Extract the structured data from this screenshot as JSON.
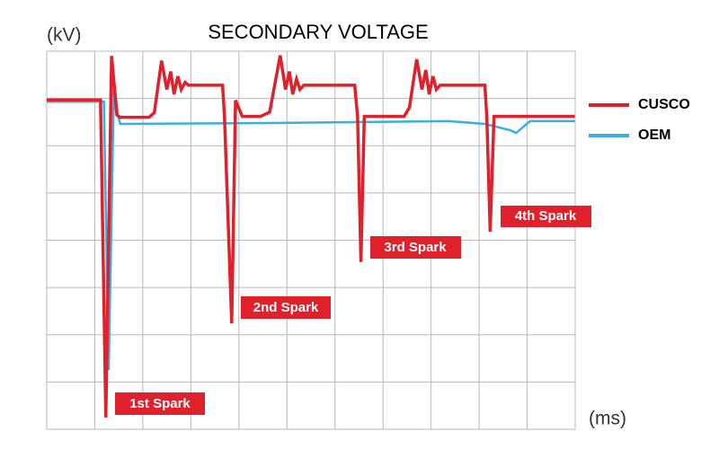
{
  "chart_data": {
    "type": "line",
    "title": "SECONDARY VOLTAGE",
    "y_label": "(kV)",
    "x_label": "(ms)",
    "xlim": [
      0,
      11
    ],
    "ylim": [
      0,
      8
    ],
    "xticks": [
      0,
      1,
      2,
      3,
      4,
      5,
      6,
      7,
      8,
      9,
      10,
      11
    ],
    "yticks": [
      0,
      1,
      2,
      3,
      4,
      5,
      6,
      7,
      8
    ],
    "grid": true,
    "series": [
      {
        "name": "CUSCO",
        "color": "#e0202a",
        "x": [
          0,
          1.12,
          1.23,
          1.35,
          1.46,
          1.53,
          2.13,
          2.24,
          2.39,
          2.5,
          2.58,
          2.65,
          2.73,
          2.8,
          2.88,
          2.95,
          3.66,
          3.7,
          3.85,
          3.93,
          4.07,
          4.45,
          4.64,
          4.86,
          4.97,
          5.05,
          5.12,
          5.2,
          5.27,
          5.35,
          6.41,
          6.47,
          6.54,
          6.61,
          7.44,
          7.55,
          7.7,
          7.81,
          7.89,
          7.96,
          8.04,
          8.11,
          8.19,
          9.12,
          9.16,
          9.23,
          9.31,
          10.99
        ],
        "values": [
          6.97,
          6.97,
          0.25,
          7.9,
          6.65,
          6.6,
          6.6,
          6.7,
          7.8,
          7.19,
          7.57,
          7.09,
          7.47,
          7.19,
          7.34,
          7.28,
          7.28,
          6.62,
          2.24,
          6.96,
          6.62,
          6.62,
          6.71,
          7.91,
          7.19,
          7.57,
          7.09,
          7.41,
          7.19,
          7.28,
          7.28,
          6.62,
          3.54,
          6.62,
          6.62,
          6.81,
          7.83,
          7.19,
          7.6,
          7.09,
          7.47,
          7.19,
          7.28,
          7.28,
          6.62,
          4.18,
          6.62,
          6.62
        ]
      },
      {
        "name": "OEM",
        "color": "#3aaee0",
        "x": [
          0,
          1.19,
          1.29,
          1.4,
          1.48,
          1.53,
          4.64,
          8.37,
          9.12,
          9.64,
          9.77,
          10.06,
          10.99
        ],
        "values": [
          6.93,
          6.93,
          1.25,
          7.38,
          6.65,
          6.46,
          6.48,
          6.52,
          6.46,
          6.33,
          6.27,
          6.52,
          6.52
        ]
      }
    ],
    "annotations": [
      "1st Spark",
      "2nd Spark",
      "3rd Spark",
      "4th Spark"
    ]
  }
}
